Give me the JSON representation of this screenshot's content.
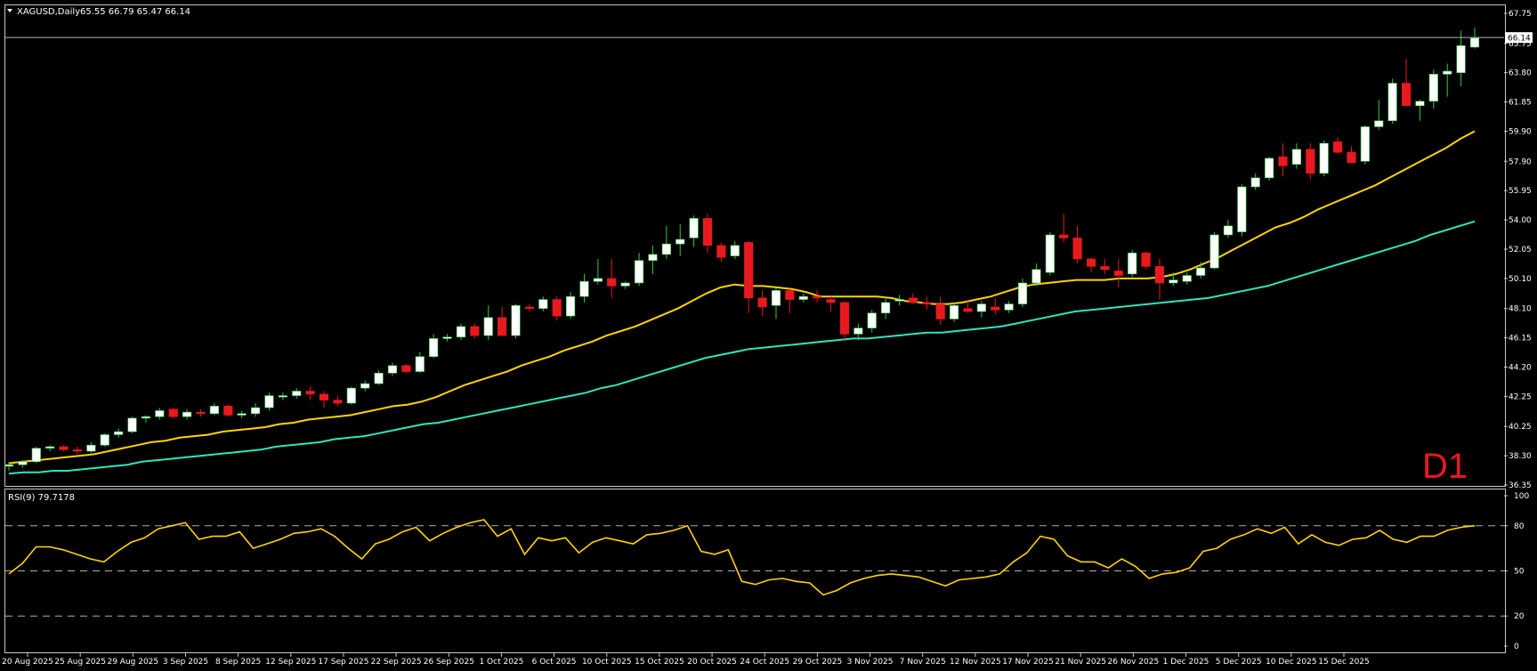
{
  "header": {
    "symbol": "XAGUSD,Daily",
    "ohlc": "65.55 66.79 65.47 66.14",
    "timeframe_badge": "D1"
  },
  "rsi_panel": {
    "label": "RSI(9) 79.7178"
  },
  "colors": {
    "background": "#000000",
    "frame": "#c8c8c8",
    "bull_candle": "#ffffff",
    "bear_candle": "#e8191f",
    "ma_fast": "#ffd400",
    "ma_slow": "#2de6c0",
    "rsi_line": "#ffd400",
    "level_lines": "#b0b0b0",
    "timeframe_badge": "#e8191f"
  },
  "chart_data": [
    {
      "type": "candlestick",
      "title": "XAGUSD,Daily",
      "last_price": 66.14,
      "ylim": [
        36.35,
        67.75
      ],
      "y_ticks": [
        "67.75",
        "65.75",
        "63.80",
        "61.85",
        "59.90",
        "57.90",
        "55.95",
        "54.00",
        "52.05",
        "50.10",
        "48.10",
        "46.15",
        "44.20",
        "42.25",
        "40.25",
        "38.30",
        "36.35"
      ],
      "x_ticks": [
        "20 Aug 2025",
        "25 Aug 2025",
        "29 Aug 2025",
        "3 Sep 2025",
        "8 Sep 2025",
        "12 Sep 2025",
        "17 Sep 2025",
        "22 Sep 2025",
        "26 Sep 2025",
        "1 Oct 2025",
        "6 Oct 2025",
        "10 Oct 2025",
        "15 Oct 2025",
        "20 Oct 2025",
        "24 Oct 2025",
        "29 Oct 2025",
        "3 Nov 2025",
        "7 Nov 2025",
        "12 Nov 2025",
        "17 Nov 2025",
        "21 Nov 2025",
        "26 Nov 2025",
        "1 Dec 2025",
        "5 Dec 2025",
        "10 Dec 2025",
        "15 Dec 2025"
      ],
      "candles_ohlc": [
        [
          37.6,
          37.9,
          37.3,
          37.7
        ],
        [
          37.7,
          38.0,
          37.5,
          37.9
        ],
        [
          37.9,
          38.9,
          37.8,
          38.8
        ],
        [
          38.8,
          39.0,
          38.6,
          38.9
        ],
        [
          38.9,
          39.0,
          38.6,
          38.7
        ],
        [
          38.7,
          38.9,
          38.4,
          38.6
        ],
        [
          38.6,
          39.2,
          38.5,
          39.0
        ],
        [
          39.0,
          39.8,
          38.9,
          39.7
        ],
        [
          39.7,
          40.1,
          39.5,
          39.9
        ],
        [
          39.9,
          40.9,
          39.8,
          40.8
        ],
        [
          40.8,
          41.0,
          40.5,
          40.9
        ],
        [
          40.9,
          41.5,
          40.7,
          41.3
        ],
        [
          41.4,
          41.5,
          40.8,
          40.9
        ],
        [
          40.9,
          41.4,
          40.7,
          41.2
        ],
        [
          41.2,
          41.4,
          40.9,
          41.1
        ],
        [
          41.1,
          41.8,
          41.0,
          41.6
        ],
        [
          41.6,
          41.7,
          40.9,
          41.0
        ],
        [
          41.0,
          41.3,
          40.8,
          41.1
        ],
        [
          41.1,
          41.8,
          40.9,
          41.5
        ],
        [
          41.5,
          42.5,
          41.3,
          42.3
        ],
        [
          42.3,
          42.5,
          42.0,
          42.3
        ],
        [
          42.3,
          42.8,
          42.1,
          42.6
        ],
        [
          42.6,
          42.9,
          42.0,
          42.4
        ],
        [
          42.4,
          42.6,
          41.5,
          42.0
        ],
        [
          42.0,
          42.3,
          41.6,
          41.8
        ],
        [
          41.8,
          42.9,
          41.7,
          42.8
        ],
        [
          42.8,
          43.3,
          42.6,
          43.1
        ],
        [
          43.1,
          44.0,
          43.0,
          43.8
        ],
        [
          43.8,
          44.5,
          43.6,
          44.3
        ],
        [
          44.3,
          44.4,
          43.8,
          43.9
        ],
        [
          43.9,
          45.2,
          43.8,
          44.9
        ],
        [
          44.9,
          46.4,
          44.8,
          46.1
        ],
        [
          46.1,
          46.4,
          45.9,
          46.2
        ],
        [
          46.2,
          47.1,
          46.0,
          46.9
        ],
        [
          46.9,
          47.1,
          46.1,
          46.3
        ],
        [
          46.3,
          48.3,
          46.0,
          47.5
        ],
        [
          47.5,
          48.2,
          46.3,
          46.3
        ],
        [
          46.3,
          48.4,
          46.1,
          48.3
        ],
        [
          48.2,
          48.4,
          47.9,
          48.1
        ],
        [
          48.1,
          48.9,
          47.9,
          48.7
        ],
        [
          48.7,
          48.9,
          47.3,
          47.6
        ],
        [
          47.6,
          49.2,
          47.4,
          48.9
        ],
        [
          48.9,
          50.4,
          48.5,
          49.9
        ],
        [
          49.9,
          51.4,
          49.7,
          50.1
        ],
        [
          50.1,
          51.4,
          48.8,
          49.6
        ],
        [
          49.6,
          49.9,
          49.4,
          49.8
        ],
        [
          49.8,
          51.8,
          49.6,
          51.3
        ],
        [
          51.3,
          52.3,
          50.4,
          51.7
        ],
        [
          51.7,
          53.6,
          51.4,
          52.4
        ],
        [
          52.4,
          53.7,
          51.6,
          52.7
        ],
        [
          52.8,
          54.3,
          52.2,
          54.1
        ],
        [
          54.1,
          54.4,
          51.8,
          52.3
        ],
        [
          52.3,
          52.5,
          51.2,
          51.5
        ],
        [
          51.6,
          52.6,
          51.4,
          52.3
        ],
        [
          52.5,
          52.6,
          47.8,
          48.8
        ],
        [
          48.8,
          49.3,
          47.6,
          48.2
        ],
        [
          48.3,
          49.5,
          47.4,
          49.3
        ],
        [
          49.3,
          49.4,
          47.8,
          48.7
        ],
        [
          48.7,
          49.1,
          48.5,
          48.9
        ],
        [
          48.9,
          49.3,
          48.5,
          48.8
        ],
        [
          48.7,
          48.9,
          47.9,
          48.5
        ],
        [
          48.5,
          48.6,
          45.9,
          46.4
        ],
        [
          46.4,
          47.1,
          46.0,
          46.8
        ],
        [
          46.8,
          48.0,
          46.5,
          47.8
        ],
        [
          47.8,
          48.9,
          47.4,
          48.5
        ],
        [
          48.6,
          49.0,
          48.3,
          48.7
        ],
        [
          48.8,
          49.1,
          48.4,
          48.5
        ],
        [
          48.5,
          48.9,
          48.0,
          48.4
        ],
        [
          48.4,
          48.9,
          47.0,
          47.4
        ],
        [
          47.4,
          48.5,
          47.2,
          48.3
        ],
        [
          48.1,
          48.6,
          47.8,
          47.9
        ],
        [
          47.9,
          48.6,
          47.5,
          48.4
        ],
        [
          48.2,
          48.8,
          47.7,
          48.0
        ],
        [
          48.0,
          48.6,
          47.8,
          48.4
        ],
        [
          48.4,
          50.1,
          48.2,
          49.8
        ],
        [
          49.8,
          51.1,
          49.6,
          50.7
        ],
        [
          50.5,
          53.2,
          50.3,
          53.0
        ],
        [
          53.0,
          54.4,
          52.5,
          52.8
        ],
        [
          52.8,
          53.6,
          51.1,
          51.4
        ],
        [
          51.4,
          51.5,
          50.5,
          50.9
        ],
        [
          50.9,
          51.4,
          50.4,
          50.7
        ],
        [
          50.6,
          51.4,
          49.5,
          50.3
        ],
        [
          50.4,
          52.0,
          50.2,
          51.8
        ],
        [
          51.8,
          51.9,
          50.7,
          50.9
        ],
        [
          50.9,
          51.4,
          48.7,
          49.8
        ],
        [
          49.8,
          50.5,
          49.6,
          50.0
        ],
        [
          49.9,
          50.5,
          49.7,
          50.3
        ],
        [
          50.3,
          51.2,
          50.1,
          50.8
        ],
        [
          50.8,
          53.2,
          50.7,
          53.0
        ],
        [
          53.0,
          54.0,
          52.8,
          53.6
        ],
        [
          53.2,
          56.4,
          52.9,
          56.2
        ],
        [
          56.2,
          57.1,
          56.0,
          56.8
        ],
        [
          56.8,
          58.2,
          56.6,
          58.1
        ],
        [
          58.2,
          59.1,
          56.9,
          57.6
        ],
        [
          57.7,
          59.1,
          57.4,
          58.7
        ],
        [
          58.7,
          59.1,
          56.7,
          57.1
        ],
        [
          57.1,
          59.3,
          56.9,
          59.1
        ],
        [
          59.2,
          59.5,
          58.4,
          58.5
        ],
        [
          58.5,
          58.9,
          57.8,
          57.8
        ],
        [
          57.9,
          60.3,
          57.7,
          60.2
        ],
        [
          60.2,
          62.0,
          60.0,
          60.6
        ],
        [
          60.6,
          63.4,
          60.4,
          63.1
        ],
        [
          63.1,
          64.7,
          61.6,
          61.6
        ],
        [
          61.6,
          62.0,
          60.6,
          61.9
        ],
        [
          61.9,
          64.0,
          61.4,
          63.7
        ],
        [
          63.7,
          64.4,
          62.2,
          63.9
        ],
        [
          63.8,
          66.6,
          62.9,
          65.6
        ],
        [
          65.5,
          66.8,
          65.4,
          66.1
        ]
      ],
      "series": [
        {
          "name": "",
          "type": "moving_average",
          "values": [
            37.8,
            37.9,
            38.0,
            38.1,
            38.2,
            38.3,
            38.4,
            38.6,
            38.8,
            39.0,
            39.2,
            39.3,
            39.5,
            39.6,
            39.7,
            39.9,
            40.0,
            40.1,
            40.2,
            40.4,
            40.5,
            40.7,
            40.8,
            40.9,
            41.0,
            41.2,
            41.4,
            41.6,
            41.7,
            41.9,
            42.2,
            42.6,
            43.0,
            43.3,
            43.6,
            43.9,
            44.3,
            44.6,
            44.9,
            45.3,
            45.6,
            45.9,
            46.3,
            46.6,
            46.9,
            47.3,
            47.7,
            48.1,
            48.6,
            49.1,
            49.5,
            49.7,
            49.6,
            49.6,
            49.5,
            49.4,
            49.2,
            48.9,
            48.9,
            48.9,
            48.9,
            48.9,
            48.8,
            48.6,
            48.5,
            48.4,
            48.4,
            48.5,
            48.7,
            48.9,
            49.2,
            49.5,
            49.7,
            49.8,
            49.9,
            50.0,
            50.0,
            50.0,
            50.1,
            50.1,
            50.1,
            50.2,
            50.4,
            50.7,
            51.1,
            51.5,
            52.0,
            52.5,
            53.0,
            53.5,
            53.8,
            54.2,
            54.7,
            55.1,
            55.5,
            55.9,
            56.3,
            56.8,
            57.3,
            57.8,
            58.3,
            58.8,
            59.4,
            59.9
          ]
        },
        {
          "name": "",
          "type": "moving_average",
          "values": [
            37.1,
            37.2,
            37.2,
            37.3,
            37.3,
            37.4,
            37.5,
            37.6,
            37.7,
            37.9,
            38.0,
            38.1,
            38.2,
            38.3,
            38.4,
            38.5,
            38.6,
            38.7,
            38.9,
            39.0,
            39.1,
            39.2,
            39.4,
            39.5,
            39.6,
            39.8,
            40.0,
            40.2,
            40.4,
            40.5,
            40.7,
            40.9,
            41.1,
            41.3,
            41.5,
            41.7,
            41.9,
            42.1,
            42.3,
            42.5,
            42.8,
            43.0,
            43.3,
            43.6,
            43.9,
            44.2,
            44.5,
            44.8,
            45.0,
            45.2,
            45.4,
            45.5,
            45.6,
            45.7,
            45.8,
            45.9,
            46.0,
            46.1,
            46.1,
            46.2,
            46.3,
            46.4,
            46.5,
            46.5,
            46.6,
            46.7,
            46.8,
            46.9,
            47.1,
            47.3,
            47.5,
            47.7,
            47.9,
            48.0,
            48.1,
            48.2,
            48.3,
            48.4,
            48.5,
            48.6,
            48.7,
            48.8,
            49.0,
            49.2,
            49.4,
            49.6,
            49.9,
            50.2,
            50.5,
            50.8,
            51.1,
            51.4,
            51.7,
            52.0,
            52.3,
            52.6,
            53.0,
            53.3,
            53.6,
            53.9
          ]
        }
      ]
    },
    {
      "type": "line",
      "title": "RSI(9) 79.7178",
      "ylim": [
        0,
        100
      ],
      "y_ticks": [
        100,
        80,
        50,
        20,
        0
      ],
      "levels": [
        80,
        50,
        20
      ],
      "series": [
        {
          "name": "",
          "values": [
            48,
            55,
            66,
            66,
            64,
            61,
            58,
            56,
            63,
            69,
            72,
            78,
            80,
            82,
            71,
            73,
            73,
            76,
            65,
            68,
            71,
            75,
            76,
            78,
            73,
            65,
            58,
            68,
            71,
            76,
            79,
            70,
            75,
            79,
            82,
            84,
            73,
            78,
            61,
            72,
            70,
            72,
            62,
            69,
            72,
            70,
            68,
            74,
            75,
            77,
            80,
            63,
            61,
            64,
            43,
            41,
            44,
            45,
            43,
            42,
            34,
            37,
            42,
            45,
            47,
            48,
            47,
            46,
            43,
            40,
            44,
            45,
            46,
            48,
            56,
            62,
            73,
            71,
            60,
            56,
            56,
            52,
            58,
            53,
            45,
            48,
            49,
            52,
            63,
            65,
            71,
            74,
            78,
            75,
            79,
            68,
            74,
            69,
            67,
            71,
            72,
            77,
            71,
            69,
            73,
            73,
            77,
            79,
            80
          ]
        }
      ]
    }
  ]
}
